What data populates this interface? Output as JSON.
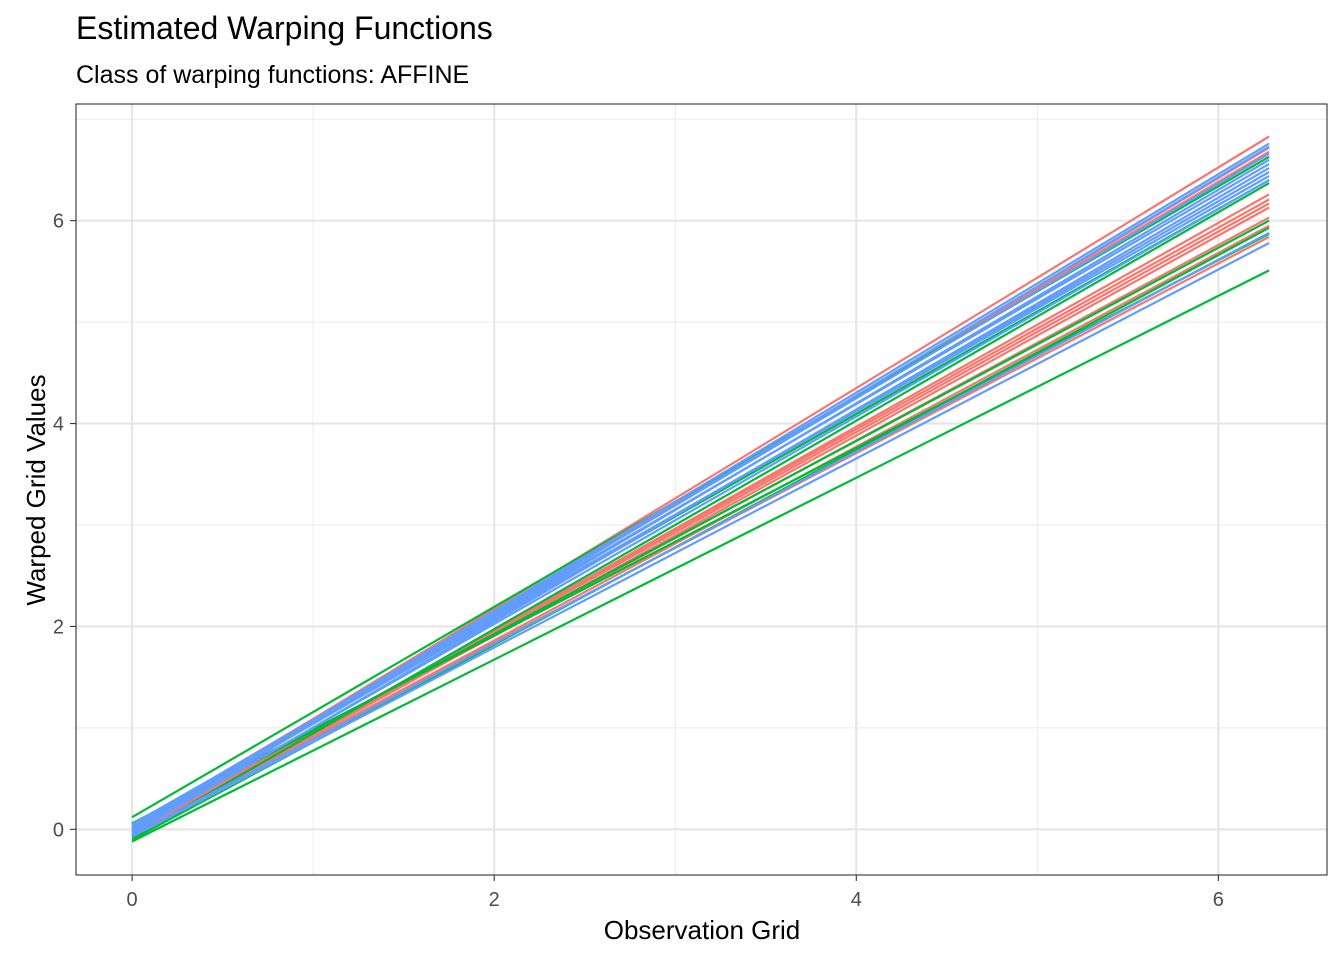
{
  "chart_data": {
    "type": "line",
    "title": "Estimated Warping Functions",
    "subtitle": "Class of warping functions: AFFINE",
    "xlabel": "Observation Grid",
    "ylabel": "Warped Grid Values",
    "xlim": [
      -0.31,
      6.6
    ],
    "ylim": [
      -0.45,
      7.15
    ],
    "x_ticks": [
      "0",
      "2",
      "4",
      "6"
    ],
    "y_ticks": [
      "0",
      "2",
      "4",
      "6"
    ],
    "grid": true,
    "legend": "none",
    "x": [
      0,
      6.28
    ],
    "series": [
      {
        "color": "#F8766D",
        "values": [
          0.0,
          6.83
        ]
      },
      {
        "color": "#F8766D",
        "values": [
          -0.02,
          6.72
        ]
      },
      {
        "color": "#F8766D",
        "values": [
          0.03,
          6.68
        ]
      },
      {
        "color": "#F8766D",
        "values": [
          -0.05,
          6.26
        ]
      },
      {
        "color": "#F8766D",
        "values": [
          -0.03,
          6.21
        ]
      },
      {
        "color": "#F8766D",
        "values": [
          -0.04,
          6.17
        ]
      },
      {
        "color": "#F8766D",
        "values": [
          -0.06,
          6.13
        ]
      },
      {
        "color": "#F8766D",
        "values": [
          -0.02,
          6.03
        ]
      },
      {
        "color": "#F8766D",
        "values": [
          -0.05,
          5.95
        ]
      },
      {
        "color": "#F8766D",
        "values": [
          -0.03,
          5.84
        ]
      },
      {
        "color": "#00BA38",
        "values": [
          0.12,
          6.63
        ]
      },
      {
        "color": "#00BA38",
        "values": [
          0.05,
          6.4
        ]
      },
      {
        "color": "#00BA38",
        "values": [
          -0.08,
          6.37
        ]
      },
      {
        "color": "#00BA38",
        "values": [
          0.02,
          6.0
        ]
      },
      {
        "color": "#00BA38",
        "values": [
          -0.1,
          5.93
        ]
      },
      {
        "color": "#00BA38",
        "values": [
          0.06,
          5.87
        ]
      },
      {
        "color": "#00BA38",
        "values": [
          -0.12,
          5.51
        ]
      },
      {
        "color": "#619CFF",
        "values": [
          0.0,
          6.76
        ]
      },
      {
        "color": "#619CFF",
        "values": [
          -0.03,
          6.73
        ]
      },
      {
        "color": "#619CFF",
        "values": [
          0.02,
          6.66
        ]
      },
      {
        "color": "#619CFF",
        "values": [
          -0.01,
          6.6
        ]
      },
      {
        "color": "#619CFF",
        "values": [
          0.04,
          6.56
        ]
      },
      {
        "color": "#619CFF",
        "values": [
          -0.04,
          6.52
        ]
      },
      {
        "color": "#619CFF",
        "values": [
          0.01,
          6.48
        ]
      },
      {
        "color": "#619CFF",
        "values": [
          0.05,
          6.44
        ]
      },
      {
        "color": "#619CFF",
        "values": [
          -0.02,
          6.4
        ]
      },
      {
        "color": "#619CFF",
        "values": [
          -0.06,
          5.88
        ]
      },
      {
        "color": "#619CFF",
        "values": [
          -0.07,
          5.78
        ]
      }
    ]
  }
}
